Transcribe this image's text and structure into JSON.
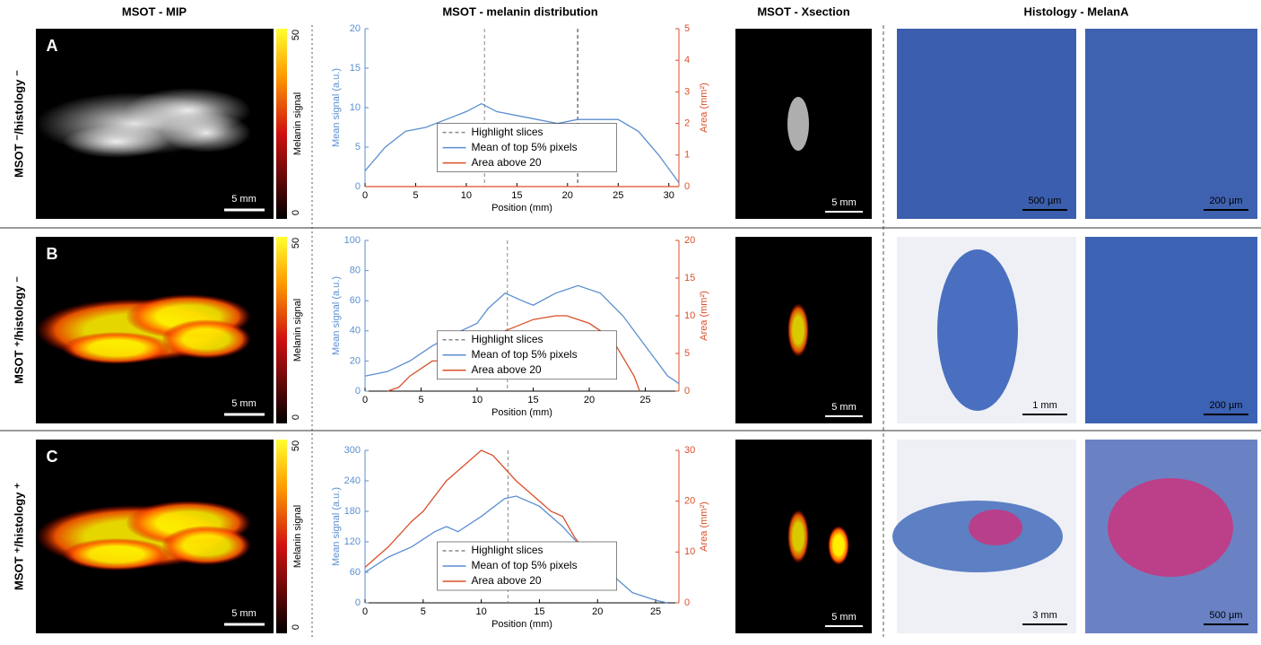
{
  "columns": [
    "MSOT - MIP",
    "MSOT - melanin distribution",
    "MSOT - Xsection",
    "Histology - MelanA"
  ],
  "rows": [
    {
      "letter": "A",
      "label": "MSOT ⁻/histology ⁻",
      "colorbar_label": "Melanin signal",
      "colorbar_ticks": [
        0,
        50
      ],
      "mip_scale": "5 mm",
      "xsection_scale": "5 mm",
      "histology_scales": [
        "500 µm",
        "200 µm"
      ]
    },
    {
      "letter": "B",
      "label": "MSOT ⁺/histology ⁻",
      "colorbar_label": "Melanin signal",
      "colorbar_ticks": [
        0,
        50
      ],
      "mip_scale": "5 mm",
      "xsection_scale": "5 mm",
      "histology_scales": [
        "1 mm",
        "200 µm"
      ]
    },
    {
      "letter": "C",
      "label": "MSOT ⁺/histology ⁺",
      "colorbar_label": "Melanin signal",
      "colorbar_ticks": [
        0,
        50
      ],
      "mip_scale": "5 mm",
      "xsection_scale": "5 mm",
      "histology_scales": [
        "3 mm",
        "500 µm"
      ]
    }
  ],
  "chart_data": [
    {
      "type": "line",
      "xlabel": "Position (mm)",
      "ylabel": "Mean signal (a.u.)",
      "y2label": "Area (mm²)",
      "xlim": [
        0,
        31
      ],
      "xticks": [
        0,
        5,
        10,
        15,
        20,
        25,
        30
      ],
      "ylim": [
        0,
        20
      ],
      "yticks": [
        0,
        5,
        10,
        15,
        20
      ],
      "y2lim": [
        0,
        5
      ],
      "y2ticks": [
        0,
        1,
        2,
        3,
        4,
        5
      ],
      "highlight": {
        "name": "Highlight slices",
        "color": "#888888",
        "x": [
          11.8,
          21
        ]
      },
      "series": [
        {
          "name": "Mean of top 5% pixels",
          "color": "#5b8fd0",
          "x": [
            0,
            2,
            4,
            6,
            8,
            10,
            11.5,
            13,
            15,
            17,
            19,
            21,
            23,
            25,
            27,
            29,
            31
          ],
          "values": [
            2,
            5,
            7,
            7.5,
            8.5,
            9.5,
            10.5,
            9.5,
            9,
            8.5,
            8,
            8.5,
            8.5,
            8.5,
            7,
            4,
            0.5
          ]
        },
        {
          "name": "Area above 20",
          "color": "#d9502a",
          "axis": "y2",
          "x": [
            0,
            31
          ],
          "values": [
            0,
            0
          ]
        }
      ]
    },
    {
      "type": "line",
      "xlabel": "Position (mm)",
      "ylabel": "Mean signal (a.u.)",
      "y2label": "Area (mm²)",
      "xlim": [
        0,
        28
      ],
      "xticks": [
        0,
        5,
        10,
        15,
        20,
        25
      ],
      "ylim": [
        0,
        100
      ],
      "yticks": [
        0,
        20,
        40,
        60,
        80,
        100
      ],
      "y2lim": [
        0,
        20
      ],
      "y2ticks": [
        0,
        5,
        10,
        15,
        20
      ],
      "highlight": {
        "name": "Highlight slices",
        "color": "#888888",
        "x": [
          12.7
        ]
      },
      "series": [
        {
          "name": "Mean of top 5% pixels",
          "color": "#5b8fd0",
          "x": [
            0,
            2,
            4,
            6,
            8,
            10,
            11,
            12.5,
            14,
            15,
            17,
            19,
            21,
            23,
            25,
            27,
            28
          ],
          "values": [
            10,
            13,
            20,
            30,
            38,
            45,
            55,
            65,
            60,
            57,
            65,
            70,
            65,
            50,
            30,
            10,
            5
          ]
        },
        {
          "name": "Area above 20",
          "color": "#d9502a",
          "axis": "y2",
          "x": [
            2,
            3,
            4,
            6,
            7,
            9,
            11,
            12.5,
            15,
            17,
            18,
            20,
            22,
            24,
            24.5
          ],
          "values": [
            0,
            0.5,
            2,
            4,
            4,
            6,
            7,
            8,
            9.5,
            10,
            10,
            9,
            7,
            2,
            0
          ]
        }
      ]
    },
    {
      "type": "line",
      "xlabel": "Position (mm)",
      "ylabel": "Mean signal (a.u.)",
      "y2label": "Area (mm²)",
      "xlim": [
        0,
        27
      ],
      "xticks": [
        0,
        5,
        10,
        15,
        20,
        25
      ],
      "ylim": [
        0,
        300
      ],
      "yticks": [
        0,
        60,
        120,
        180,
        240,
        300
      ],
      "y2lim": [
        0,
        30
      ],
      "y2ticks": [
        0,
        10,
        20,
        30
      ],
      "highlight": {
        "name": "Highlight slices",
        "color": "#888888",
        "x": [
          12.3
        ]
      },
      "series": [
        {
          "name": "Mean of top 5% pixels",
          "color": "#5b8fd0",
          "x": [
            0,
            2,
            4,
            6,
            7,
            8,
            10,
            12,
            13,
            15,
            17,
            19,
            21,
            23,
            25,
            26
          ],
          "values": [
            60,
            90,
            110,
            140,
            150,
            140,
            170,
            205,
            210,
            190,
            150,
            100,
            60,
            20,
            5,
            0
          ]
        },
        {
          "name": "Area above 20",
          "color": "#d9502a",
          "axis": "y2",
          "x": [
            0,
            2,
            4,
            5,
            7,
            9,
            10,
            11,
            13,
            15,
            16,
            17,
            18,
            19
          ],
          "values": [
            7,
            11,
            16,
            18,
            24,
            28,
            30,
            29,
            24,
            20,
            18,
            17,
            13,
            10
          ]
        }
      ]
    }
  ]
}
